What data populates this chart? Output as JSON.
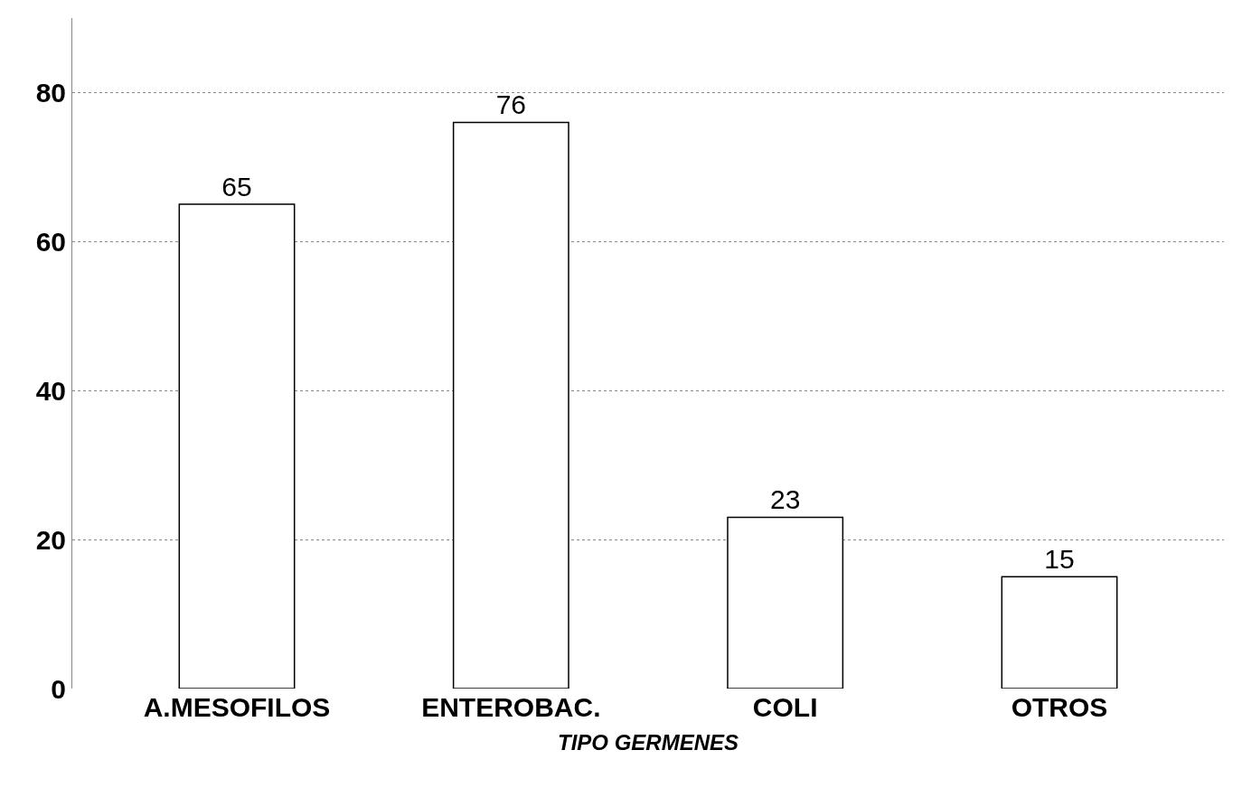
{
  "chart_data": {
    "type": "bar",
    "categories": [
      "A.MESOFILOS",
      "ENTEROBAC.",
      "COLI",
      "OTROS"
    ],
    "values": [
      65,
      76,
      23,
      15
    ],
    "color": "#ffffff",
    "xlabel": "TIPO GERMENES",
    "ylim": [
      0,
      90
    ],
    "yticks": [
      0,
      20,
      40,
      60,
      80
    ],
    "grid": "y",
    "data_labels": true
  }
}
